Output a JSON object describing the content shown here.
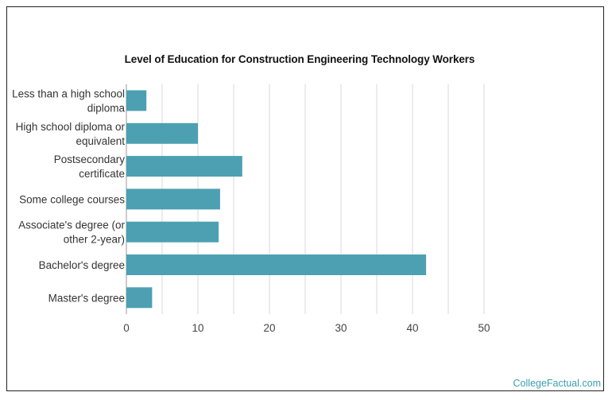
{
  "brand": {
    "text": "CollegeFactual.com"
  },
  "chart_data": {
    "type": "bar",
    "orientation": "horizontal",
    "title": "Level of Education for Construction Engineering Technology Workers",
    "categories": [
      [
        "Less than a high school",
        "diploma"
      ],
      [
        "High school diploma or",
        "equivalent"
      ],
      [
        "Postsecondary",
        "certificate"
      ],
      [
        "Some college courses"
      ],
      [
        "Associate's degree (or",
        "other 2-year)"
      ],
      [
        "Bachelor's degree"
      ],
      [
        "Master's degree"
      ]
    ],
    "values": [
      2.8,
      10,
      16.2,
      13.1,
      12.9,
      41.9,
      3.6
    ],
    "xlim": [
      0,
      50
    ],
    "xticks": [
      0,
      10,
      20,
      30,
      40,
      50
    ],
    "grid": true,
    "bar_color": "#4ca0b2",
    "grid_color": "#d9d9d9"
  }
}
